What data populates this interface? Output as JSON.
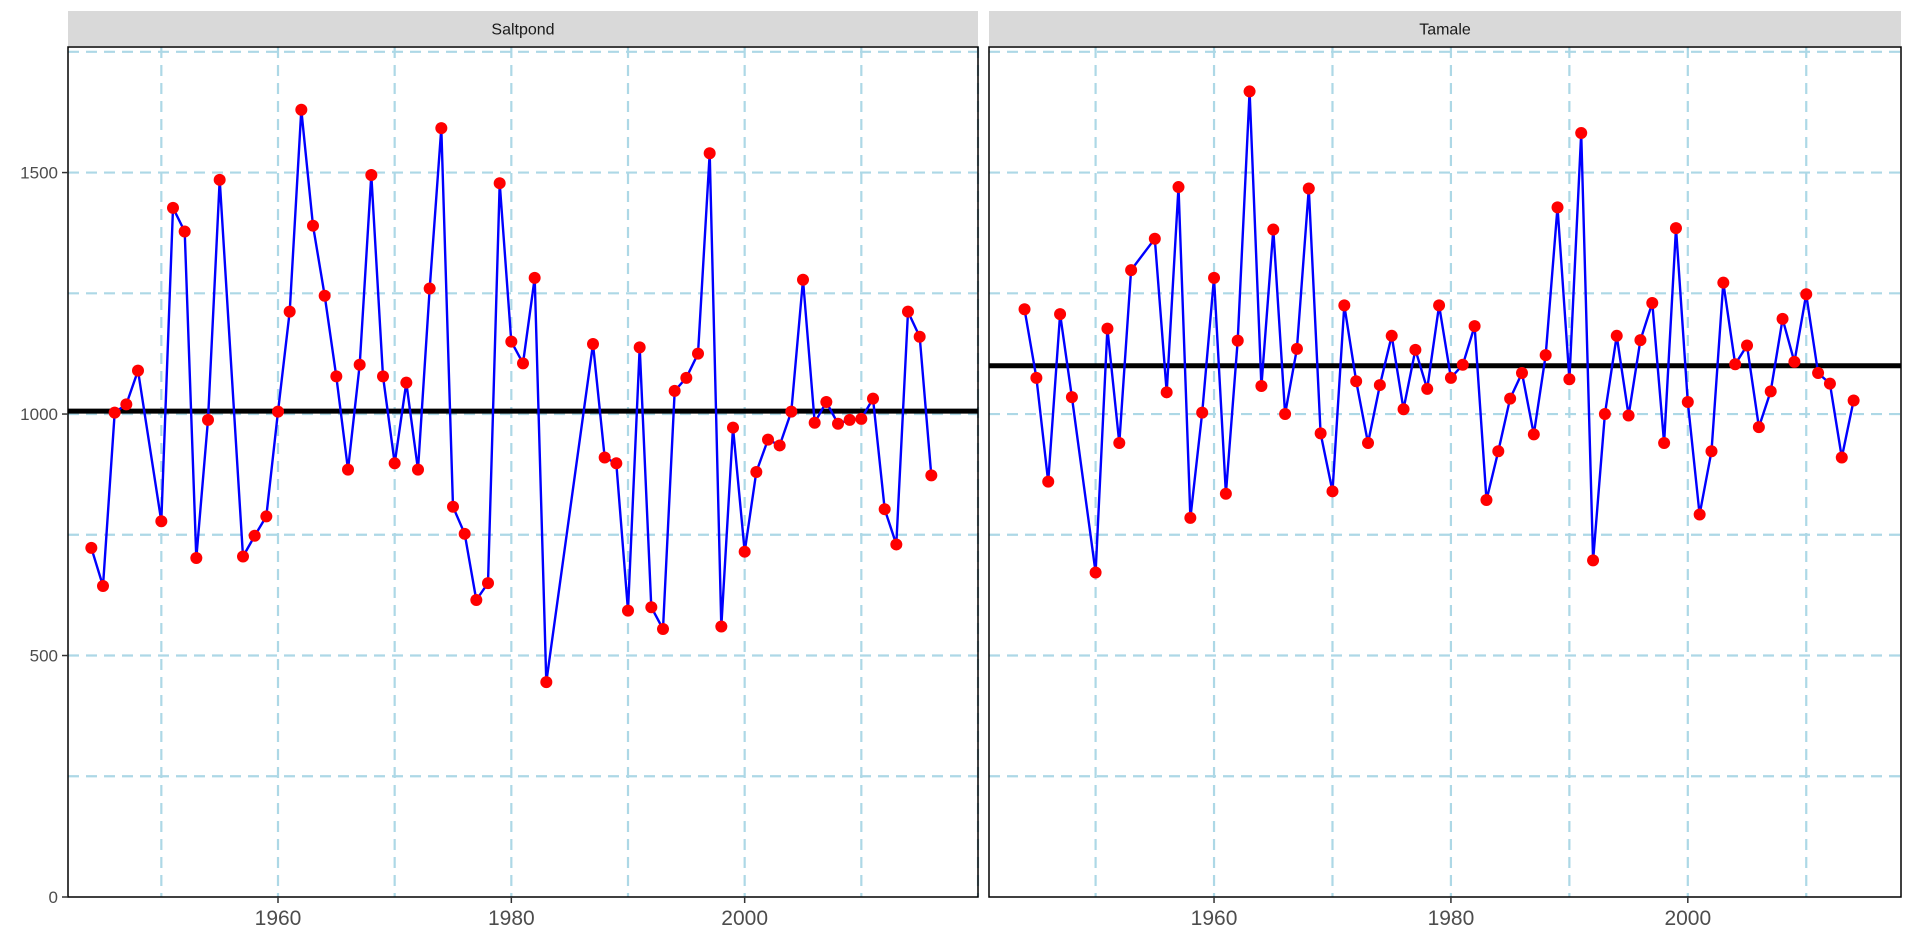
{
  "chart_data": [
    {
      "type": "line",
      "facet_label": "Saltpond",
      "x": [
        1944,
        1945,
        1946,
        1947,
        1948,
        1950,
        1951,
        1952,
        1953,
        1954,
        1955,
        1957,
        1958,
        1959,
        1960,
        1961,
        1962,
        1963,
        1964,
        1965,
        1966,
        1967,
        1968,
        1969,
        1970,
        1971,
        1972,
        1973,
        1974,
        1975,
        1976,
        1977,
        1978,
        1979,
        1980,
        1981,
        1982,
        1983,
        1987,
        1988,
        1989,
        1990,
        1991,
        1992,
        1993,
        1994,
        1995,
        1996,
        1997,
        1998,
        1999,
        2000,
        2001,
        2002,
        2003,
        2004,
        2005,
        2006,
        2007,
        2008,
        2009,
        2010,
        2011,
        2012,
        2013,
        2014,
        2015,
        2016
      ],
      "y": [
        723,
        644,
        1003,
        1020,
        1090,
        778,
        1427,
        1378,
        702,
        988,
        1485,
        705,
        748,
        788,
        1005,
        1212,
        1630,
        1390,
        1245,
        1078,
        885,
        1102,
        1495,
        1078,
        898,
        1065,
        885,
        1260,
        1592,
        808,
        752,
        615,
        650,
        1478,
        1150,
        1105,
        1282,
        445,
        1145,
        910,
        898,
        593,
        1138,
        600,
        555,
        1048,
        1075,
        1125,
        1540,
        560,
        972,
        715,
        880,
        947,
        935,
        1005,
        1278,
        982,
        1025,
        980,
        988,
        990,
        1032,
        803,
        730,
        1212,
        1160,
        873
      ],
      "series_line_color": "#0000ff",
      "point_color": "#ff0000",
      "hline": 1006,
      "xlim": [
        1942,
        2020
      ],
      "ylim": [
        0,
        1760
      ],
      "xticks": [
        1960,
        1980,
        2000
      ],
      "yticks": [
        0,
        500,
        1000,
        1500
      ]
    },
    {
      "type": "line",
      "facet_label": "Tamale",
      "x": [
        1944,
        1945,
        1946,
        1947,
        1948,
        1950,
        1951,
        1952,
        1953,
        1955,
        1956,
        1957,
        1958,
        1959,
        1960,
        1961,
        1962,
        1963,
        1964,
        1965,
        1966,
        1967,
        1968,
        1969,
        1970,
        1971,
        1972,
        1973,
        1974,
        1975,
        1976,
        1977,
        1978,
        1979,
        1980,
        1981,
        1982,
        1983,
        1984,
        1985,
        1986,
        1987,
        1988,
        1989,
        1990,
        1991,
        1992,
        1993,
        1994,
        1995,
        1996,
        1997,
        1998,
        1999,
        2000,
        2001,
        2002,
        2003,
        2004,
        2005,
        2006,
        2007,
        2008,
        2009,
        2010,
        2011,
        2012,
        2013,
        2014
      ],
      "y": [
        1217,
        1075,
        860,
        1207,
        1035,
        672,
        1177,
        940,
        1298,
        1363,
        1045,
        1470,
        785,
        1003,
        1282,
        835,
        1152,
        1668,
        1058,
        1382,
        1000,
        1135,
        1467,
        960,
        840,
        1225,
        1068,
        940,
        1060,
        1162,
        1010,
        1133,
        1052,
        1225,
        1075,
        1102,
        1182,
        822,
        923,
        1032,
        1085,
        958,
        1122,
        1428,
        1072,
        1582,
        697,
        1000,
        1162,
        997,
        1153,
        1230,
        940,
        1385,
        1025,
        792,
        923,
        1272,
        1103,
        1142,
        973,
        1047,
        1197,
        1108,
        1248,
        1085,
        1063,
        910,
        1028
      ],
      "series_line_color": "#0000ff",
      "point_color": "#ff0000",
      "hline": 1100,
      "xlim": [
        1941,
        2018
      ],
      "ylim": [
        0,
        1760
      ],
      "xticks": [
        1960,
        1980,
        2000
      ],
      "yticks": [
        0,
        500,
        1000,
        1500
      ]
    }
  ],
  "style": {
    "strip_fill": "#d9d9d9",
    "grid_color": "#add8e6",
    "axis_text_color": "#4d4d4d",
    "hline_color": "#000000"
  }
}
